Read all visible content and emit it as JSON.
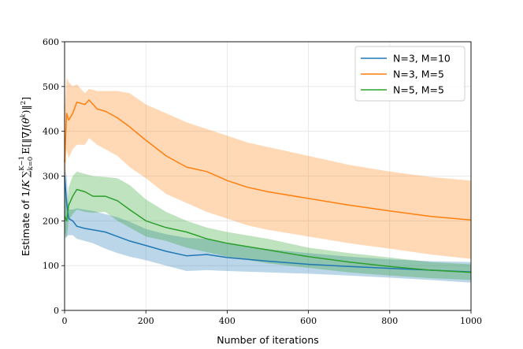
{
  "chart_data": {
    "type": "line",
    "title": "",
    "xlabel": "Number of iterations",
    "ylabel": "Estimate of 1/K ∑_{k=0}^{K−1} E[‖∇J(θ^k)‖²]",
    "ylabel_parts": {
      "prefix": "Estimate of 1/",
      "K": "K",
      "sum": "∑",
      "sum_sub": "k=0",
      "sum_sup": "K−1",
      "expect": "E[‖∇",
      "J": "J",
      "paren_open": "(",
      "theta": "θ",
      "k": "k",
      "closing": ")‖",
      "square": "2",
      "bracket": "]"
    },
    "xlim": [
      0,
      1000
    ],
    "ylim": [
      0,
      600
    ],
    "xticks": [
      0,
      200,
      400,
      600,
      800,
      1000
    ],
    "yticks": [
      0,
      100,
      200,
      300,
      400,
      500,
      600
    ],
    "grid": true,
    "legend_position": "top-right",
    "series": [
      {
        "name": "N=3, M=10",
        "color": "#1f77b4",
        "fill": "#1f77b4",
        "x": [
          0,
          5,
          10,
          20,
          30,
          50,
          70,
          100,
          130,
          160,
          200,
          250,
          300,
          350,
          400,
          500,
          600,
          700,
          800,
          900,
          1000
        ],
        "y": [
          300,
          240,
          205,
          200,
          188,
          183,
          180,
          175,
          165,
          155,
          145,
          132,
          122,
          125,
          118,
          110,
          103,
          98,
          94,
          90,
          86
        ],
        "lower": [
          160,
          165,
          168,
          168,
          160,
          155,
          150,
          138,
          128,
          120,
          112,
          100,
          88,
          90,
          88,
          85,
          82,
          78,
          73,
          68,
          62
        ],
        "upper": [
          320,
          300,
          225,
          225,
          228,
          225,
          222,
          215,
          208,
          198,
          182,
          170,
          162,
          160,
          150,
          137,
          128,
          120,
          114,
          110,
          108
        ]
      },
      {
        "name": "N=3, M=5",
        "color": "#ff7f0e",
        "fill": "#ff7f0e",
        "x": [
          0,
          5,
          10,
          20,
          30,
          50,
          60,
          80,
          100,
          130,
          160,
          200,
          250,
          300,
          350,
          400,
          450,
          500,
          600,
          700,
          800,
          900,
          1000
        ],
        "y": [
          330,
          440,
          425,
          440,
          465,
          460,
          470,
          450,
          445,
          430,
          410,
          380,
          345,
          320,
          310,
          290,
          275,
          265,
          250,
          235,
          222,
          210,
          202
        ],
        "lower": [
          250,
          360,
          340,
          360,
          370,
          370,
          385,
          370,
          360,
          345,
          320,
          295,
          260,
          240,
          220,
          205,
          190,
          180,
          165,
          150,
          138,
          125,
          115
        ],
        "upper": [
          440,
          520,
          510,
          500,
          505,
          485,
          495,
          490,
          490,
          490,
          485,
          460,
          440,
          420,
          405,
          390,
          375,
          365,
          345,
          325,
          310,
          298,
          290
        ]
      },
      {
        "name": "N=5, M=5",
        "color": "#2ca02c",
        "fill": "#2ca02c",
        "x": [
          0,
          5,
          10,
          20,
          30,
          50,
          70,
          100,
          130,
          160,
          200,
          250,
          300,
          350,
          400,
          500,
          600,
          700,
          800,
          900,
          1000
        ],
        "y": [
          210,
          200,
          235,
          255,
          270,
          265,
          255,
          255,
          245,
          225,
          200,
          185,
          175,
          160,
          150,
          135,
          120,
          108,
          98,
          90,
          85
        ],
        "lower": [
          180,
          160,
          200,
          215,
          225,
          220,
          218,
          220,
          200,
          185,
          165,
          155,
          140,
          130,
          120,
          105,
          95,
          85,
          78,
          72,
          68
        ],
        "upper": [
          280,
          230,
          275,
          300,
          310,
          305,
          300,
          298,
          295,
          280,
          248,
          220,
          200,
          185,
          175,
          160,
          140,
          128,
          118,
          108,
          103
        ]
      }
    ]
  }
}
